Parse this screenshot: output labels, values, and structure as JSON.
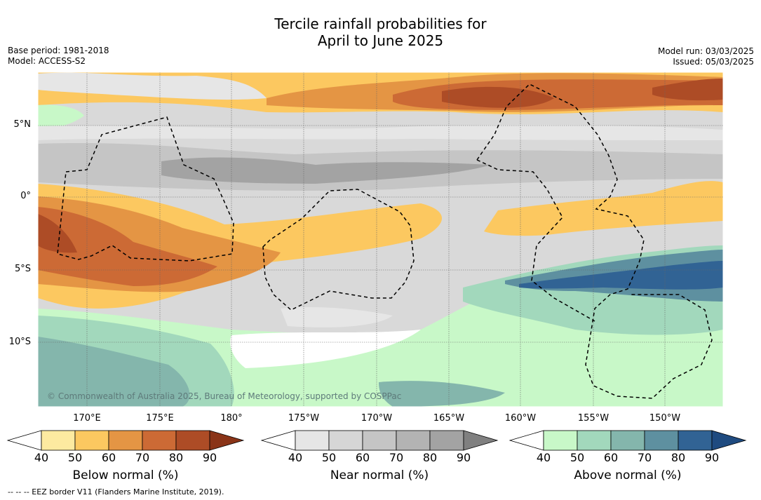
{
  "title": {
    "line1": "Tercile rainfall probabilities for",
    "line2": "April to June 2025"
  },
  "meta_left": {
    "base_period": "Base period: 1981-2018",
    "model": "Model: ACCESS-S2"
  },
  "meta_right": {
    "model_run": "Model run: 03/03/2025",
    "issued": "Issued: 05/03/2025"
  },
  "map": {
    "lat_ticks": [
      "5°N",
      "0°",
      "5°S",
      "10°S"
    ],
    "lon_ticks": [
      "170°E",
      "175°E",
      "180°",
      "175°W",
      "170°W",
      "165°W",
      "160°W",
      "155°W",
      "150°W"
    ],
    "copyright": "© Commonwealth of Australia 2025, Bureau of Meteorology, supported by COSPPac"
  },
  "colorbars": [
    {
      "label": "Below normal (%)",
      "ticks": [
        "40",
        "50",
        "60",
        "70",
        "80",
        "90"
      ],
      "colors": [
        "#fdeaa0",
        "#fcc860",
        "#e49544",
        "#cc6a35",
        "#ad4c26"
      ],
      "extend_color": "#8a3418"
    },
    {
      "label": "Near normal (%)",
      "ticks": [
        "40",
        "50",
        "60",
        "70",
        "80",
        "90"
      ],
      "colors": [
        "#e6e6e6",
        "#d6d6d6",
        "#c5c5c5",
        "#b3b3b3",
        "#a3a3a3"
      ],
      "extend_color": "#808080"
    },
    {
      "label": "Above normal (%)",
      "ticks": [
        "40",
        "50",
        "60",
        "70",
        "80",
        "90"
      ],
      "colors": [
        "#c8f8c8",
        "#a2d8bc",
        "#84b6ac",
        "#5e90a0",
        "#316394"
      ],
      "extend_color": "#1f4b80"
    }
  ],
  "eez_note": "--  --  -- EEZ border V11 (Flanders Marine Institute, 2019)."
}
